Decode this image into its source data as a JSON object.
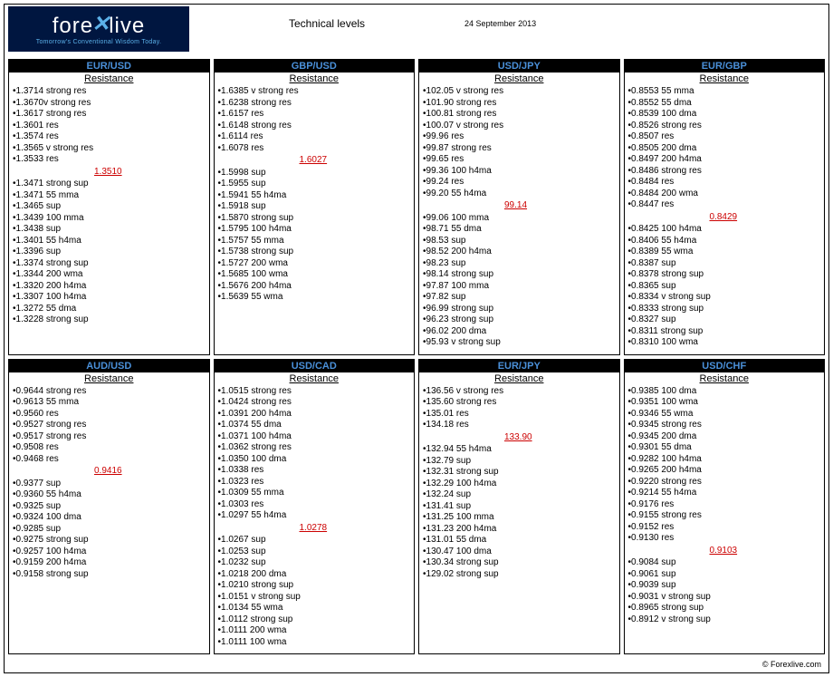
{
  "header": {
    "logo_top": "fore",
    "logo_x": "✕",
    "logo_rest": "live",
    "logo_sub": "Tomorrow's Conventional Wisdom Today.",
    "title": "Technical levels",
    "date": "24 September 2013"
  },
  "footer": "© Forexlive.com",
  "pairs": [
    {
      "name": "EUR/USD",
      "pivot": "1.3510",
      "pivot_style": "indent",
      "resistance": [
        "1.3714 strong res",
        "1.3670v strong  res",
        "1.3617 strong res",
        "1.3601 res",
        "1.3574 res",
        "1.3565 v strong res",
        "1.3533 res"
      ],
      "support": [
        "1.3471 strong sup",
        "1.3471 55 mma",
        "1.3465 sup",
        "1.3439 100 mma",
        "1.3438 sup",
        "1.3401 55 h4ma",
        "1.3396 sup",
        "1.3374 strong sup",
        "1.3344 200 wma",
        "1.3320 200 h4ma",
        "1.3307 100 h4ma",
        "1.3272 55 dma",
        "1.3228 strong sup"
      ]
    },
    {
      "name": "GBP/USD",
      "pivot": "1.6027",
      "pivot_style": "indent",
      "resistance": [
        "1.6385 v strong res",
        "1.6238 strong res",
        "1.6157 res",
        "1.6148 strong res",
        "1.6114 res",
        "1.6078 res"
      ],
      "support": [
        "1.5998 sup",
        "1.5955 sup",
        "1.5941 55 h4ma",
        "1.5918 sup",
        "1.5870 strong sup",
        "1.5795 100 h4ma",
        "1.5757 55 mma",
        "1.5738 strong sup",
        "1.5727 200 wma",
        "1.5685 100 wma",
        "1.5676 200 h4ma",
        "1.5639 55 wma"
      ]
    },
    {
      "name": "USD/JPY",
      "pivot": "99.14",
      "pivot_style": "indent",
      "resistance": [
        "102.05 v strong res",
        "101.90 strong res",
        "100.81 strong res",
        "100.07 v strong res",
        "99.96 res",
        "99.87 strong res",
        "99.65 res",
        "99.36 100 h4ma",
        "99.24 res",
        "99.20 55 h4ma"
      ],
      "support": [
        "99.06 100 mma",
        "98.71 55 dma",
        "98.53 sup",
        "98.52 200 h4ma",
        "98.23 sup",
        "98.14 strong sup",
        "97.87 100 mma",
        "97.82 sup",
        "96.99 strong sup",
        "96.23 strong sup",
        "96.02 200 dma",
        "95.93 v strong sup"
      ]
    },
    {
      "name": "EUR/GBP",
      "pivot": "0.8429",
      "pivot_style": "indent",
      "resistance": [
        "0.8553 55 mma",
        "0.8552 55 dma",
        "0.8539 100 dma",
        "0.8526 strong res",
        "0.8507 res",
        "0.8505 200 dma",
        "0.8497 200 h4ma",
        "0.8486 strong res",
        "0.8484 res",
        "0.8484 200 wma",
        "0.8447 res"
      ],
      "support": [
        "0.8425 100 h4ma",
        "0.8406 55 h4ma",
        "0.8389 55 wma",
        "0.8387 sup",
        "0.8378 strong sup",
        "0.8365 sup",
        "0.8334 v strong sup",
        "0.8333 strong sup",
        "0.8327 sup",
        "0.8311 strong sup",
        "0.8310 100 wma"
      ]
    },
    {
      "name": "AUD/USD",
      "pivot": "0.9416",
      "pivot_style": "indent",
      "resistance": [
        "0.9644 strong res",
        "0.9613 55 mma",
        "0.9560 res",
        "0.9527 strong res",
        "0.9517 strong res",
        "0.9508 res",
        "0.9468 res"
      ],
      "support": [
        "0.9377 sup",
        "0.9360 55 h4ma",
        "0.9325 sup",
        "0.9324 100 dma",
        "0.9285 sup",
        "0.9275 strong sup",
        "0.9257 100 h4ma",
        "0.9159 200 h4ma",
        "0.9158 strong sup"
      ]
    },
    {
      "name": "USD/CAD",
      "pivot": "1.0278",
      "pivot_style": "indent",
      "resistance": [
        "1.0515 strong res",
        "1.0424 strong res",
        "1.0391 200 h4ma",
        "1.0374 55 dma",
        "1.0371 100 h4ma",
        "1.0362 strong res",
        "1.0350 100 dma",
        "1.0338 res",
        "1.0323 res",
        "1.0309 55 mma",
        "1.0303 res",
        "1.0297 55 h4ma"
      ],
      "support": [
        "1.0267 sup",
        "1.0253 sup",
        "1.0232 sup",
        "1.0218 200 dma",
        "1.0210 strong sup",
        "1.0151 v strong sup",
        "1.0134 55 wma",
        "1.0112 strong sup",
        "1.0111 200 wma",
        "1.0111 100 wma"
      ]
    },
    {
      "name": "EUR/JPY",
      "pivot": "133.90",
      "pivot_style": "indent",
      "resistance": [
        "136.56 v strong res",
        "135.60 strong res",
        "135.01 res",
        "134.18 res"
      ],
      "support": [
        "132.94 55 h4ma",
        "132.79 sup",
        "132.31 strong sup",
        "132.29 100 h4ma",
        "132.24 sup",
        "131.41 sup",
        "131.25 100 mma",
        "131.23 200 h4ma",
        "131.01 55 dma",
        "130.47 100 dma",
        "130.34 strong sup",
        "129.02 strong sup"
      ]
    },
    {
      "name": "USD/CHF",
      "pivot": "0.9103",
      "pivot_style": "indent",
      "resistance": [
        "0.9385 100 dma",
        "0.9351 100 wma",
        "0.9346 55 wma",
        "0.9345 strong res",
        "0.9345 200 dma",
        "0.9301 55 dma",
        "0.9282 100 h4ma",
        "0.9265 200 h4ma",
        "0.9220 strong res",
        "0.9214 55 h4ma",
        "0.9176 res",
        "0.9155 strong res",
        "0.9152 res",
        "0.9130 res"
      ],
      "support": [
        "0.9084 sup",
        "0.9061 sup",
        "0.9039 sup",
        "0.9031 v strong sup",
        "0.8965 strong sup",
        "0.8912 v strong sup"
      ]
    }
  ]
}
